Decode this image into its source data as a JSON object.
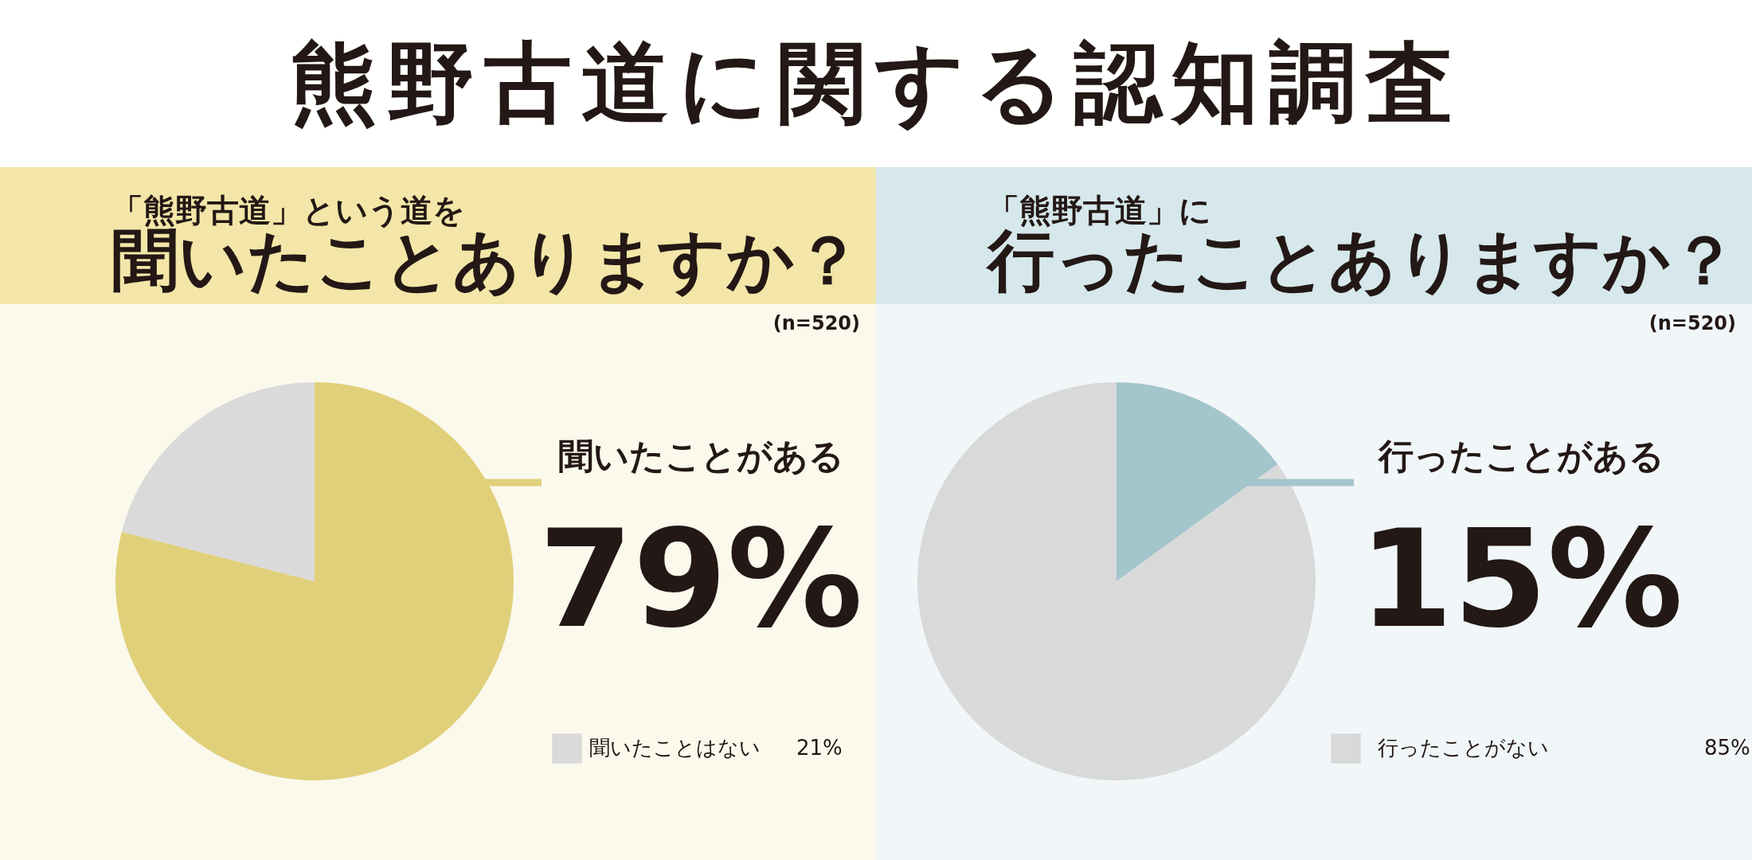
{
  "chart_data": [
    {
      "type": "other",
      "title": "熊野古道に関する認知調査"
    },
    {
      "type": "pie",
      "title": "「熊野古道」という道を",
      "subtitle": "聞いたことありますか？",
      "categories": [
        "聞いたことがある",
        "聞いたことはない"
      ],
      "values": [
        79,
        21
      ],
      "colors": [
        "#e0d07a",
        "#dadada"
      ],
      "value_labels": [
        "79%",
        "21%"
      ],
      "legend": "bottom right",
      "annotations": [
        "(n=520)"
      ]
    },
    {
      "type": "pie",
      "title": "「熊野古道」に",
      "subtitle": "行ったことありますか？",
      "categories": [
        "行ったことがある",
        "行ったことがない"
      ],
      "values": [
        15,
        85
      ],
      "colors": [
        "#a3c6cc",
        "#d9d9d9"
      ],
      "value_labels": [
        "15%",
        "85%"
      ],
      "legend": "bottom right",
      "annotations": [
        "(n=520)"
      ]
    }
  ]
}
